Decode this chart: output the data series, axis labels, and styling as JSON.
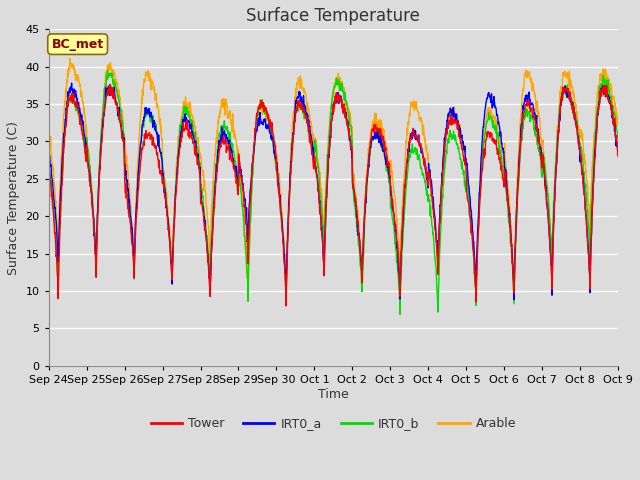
{
  "title": "Surface Temperature",
  "ylabel": "Surface Temperature (C)",
  "xlabel": "Time",
  "ylim": [
    0,
    45
  ],
  "yticks": [
    0,
    5,
    10,
    15,
    20,
    25,
    30,
    35,
    40,
    45
  ],
  "xtick_labels": [
    "Sep 24",
    "Sep 25",
    "Sep 26",
    "Sep 27",
    "Sep 28",
    "Sep 29",
    "Sep 30",
    "Oct 1",
    "Oct 2",
    "Oct 3",
    "Oct 4",
    "Oct 5",
    "Oct 6",
    "Oct 7",
    "Oct 8",
    "Oct 9"
  ],
  "annotation": "BC_met",
  "annotation_color": "#8B0000",
  "annotation_bg": "#FFFF99",
  "annotation_edge": "#8B6914",
  "fig_bg": "#DCDCDC",
  "plot_bg": "#DCDCDC",
  "series": {
    "Tower": {
      "color": "#FF0000",
      "lw": 1.0
    },
    "IRT0_a": {
      "color": "#0000FF",
      "lw": 1.0
    },
    "IRT0_b": {
      "color": "#00DD00",
      "lw": 1.0
    },
    "Arable": {
      "color": "#FFA500",
      "lw": 1.0
    }
  },
  "title_fontsize": 12,
  "axis_label_fontsize": 9,
  "tick_fontsize": 8,
  "n_days": 15,
  "pts_per_day": 96,
  "peak_hour": 14,
  "trough_hour": 6,
  "peak_tower": [
    36,
    37,
    31,
    32,
    30,
    35,
    35,
    36,
    32,
    31,
    33,
    31,
    35,
    37,
    37
  ],
  "trough_tower": [
    9,
    12,
    12,
    11,
    9,
    14,
    8,
    12,
    11,
    10,
    12,
    9,
    9,
    10,
    10
  ],
  "peak_irt0a": [
    37,
    37,
    34,
    33,
    31,
    33,
    36,
    36,
    31,
    31,
    34,
    36,
    36,
    37,
    37
  ],
  "trough_irt0a": [
    13,
    13,
    13,
    11,
    9,
    17,
    9,
    12,
    11,
    9,
    13,
    9,
    9,
    10,
    10
  ],
  "peak_irt0b": [
    36,
    39,
    34,
    34,
    32,
    35,
    35,
    38,
    31,
    29,
    31,
    33,
    34,
    37,
    38
  ],
  "trough_irt0b": [
    10,
    13,
    12,
    11,
    10,
    9,
    9,
    15,
    9,
    7,
    7,
    8,
    8,
    14,
    14
  ],
  "peak_arable": [
    40,
    40,
    39,
    35,
    35,
    35,
    38,
    38,
    33,
    35,
    34,
    34,
    39,
    39,
    39
  ],
  "trough_arable": [
    15,
    12,
    12,
    12,
    14,
    9,
    9,
    17,
    12,
    12,
    12,
    9,
    9,
    12,
    18
  ]
}
